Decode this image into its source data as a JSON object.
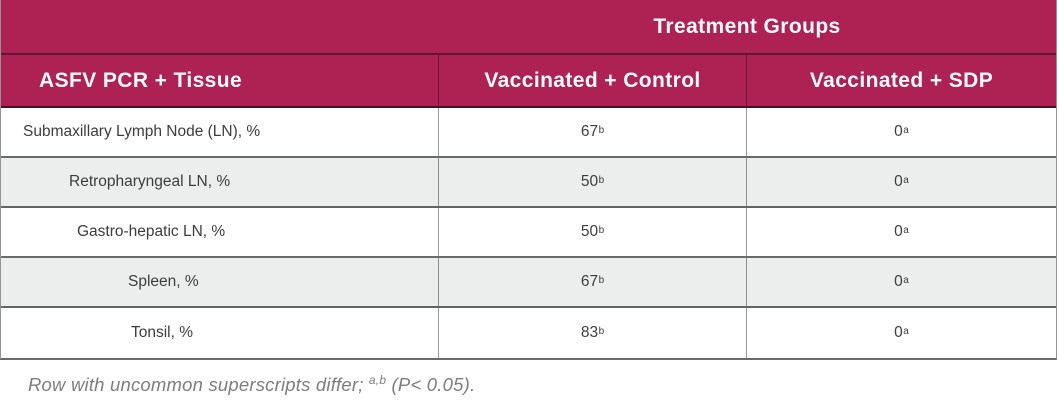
{
  "table": {
    "top_header": "Treatment Groups",
    "columns": [
      "ASFV PCR + Tissue",
      "Vaccinated + Control",
      "Vaccinated + SDP"
    ],
    "rows": [
      {
        "tissue": "Submaxillary Lymph Node (LN), %",
        "control_value": "67",
        "control_sup": "b",
        "sdp_value": "0",
        "sdp_sup": "a"
      },
      {
        "tissue": "Retropharyngeal LN, %",
        "control_value": "50",
        "control_sup": "b",
        "sdp_value": "0",
        "sdp_sup": "a"
      },
      {
        "tissue": "Gastro-hepatic LN, %",
        "control_value": "50",
        "control_sup": "b",
        "sdp_value": "0",
        "sdp_sup": "a"
      },
      {
        "tissue": "Spleen, %",
        "control_value": "67",
        "control_sup": "b",
        "sdp_value": "0",
        "sdp_sup": "a"
      },
      {
        "tissue": "Tonsil, %",
        "control_value": "83",
        "control_sup": "b",
        "sdp_value": "0",
        "sdp_sup": "a"
      }
    ]
  },
  "footnote": {
    "text": "Row with uncommon superscripts differ; ",
    "sup": "a,b",
    "tail": " (P< 0.05)."
  },
  "colors": {
    "accent": "#AE2155",
    "alt_row": "#ECEDED",
    "header_text": "#FDFAFB",
    "body_text": "#3D3D3D",
    "footnote_text": "#7D7D7D"
  }
}
